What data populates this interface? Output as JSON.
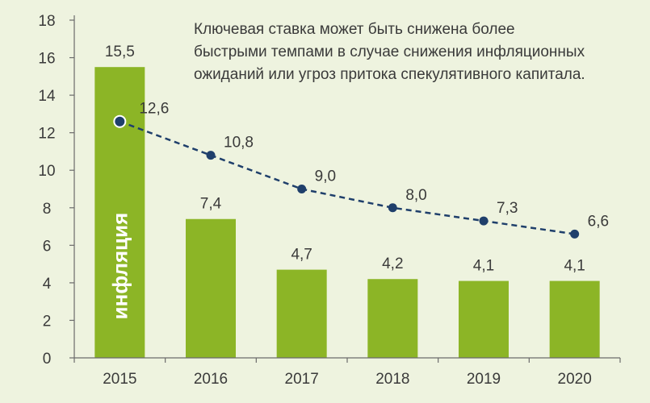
{
  "chart_data": {
    "type": "bar",
    "categories": [
      "2015",
      "2016",
      "2017",
      "2018",
      "2019",
      "2020"
    ],
    "series": [
      {
        "values": [
          15.5,
          7.4,
          4.7,
          4.2,
          4.1,
          4.1
        ],
        "labels": [
          "15,5",
          "7,4",
          "4,7",
          "4,2",
          "4,1",
          "4,1"
        ],
        "color": "#8cb526",
        "kind": "bar"
      },
      {
        "values": [
          12.6,
          10.8,
          9.0,
          8.0,
          7.3,
          6.6
        ],
        "labels": [
          "12,6",
          "10,8",
          "9,0",
          "8,0",
          "7,3",
          "6,6"
        ],
        "color": "#1f3f6b",
        "kind": "line-dashed"
      }
    ],
    "bar_inner_label": "инфляция",
    "annotation_lines": [
      "Ключевая ставка может быть снижена более",
      "быстрыми темпами в случае снижения инфляционных",
      "ожиданий или угроз притока спекулятивного капитала."
    ],
    "y_ticks": [
      "0",
      "2",
      "4",
      "6",
      "8",
      "10",
      "12",
      "14",
      "16",
      "18"
    ],
    "ylim": [
      0,
      18
    ],
    "grid": false
  }
}
